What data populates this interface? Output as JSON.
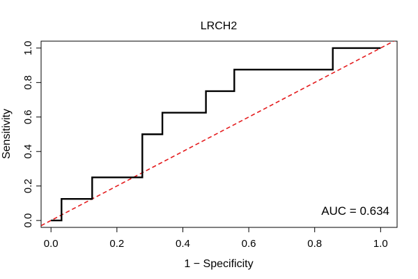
{
  "chart_data": {
    "type": "line",
    "title": "LRCH2",
    "xlabel": "1 − Specificity",
    "ylabel": "Sensitivity",
    "xlim": [
      -0.03,
      1.05
    ],
    "ylim": [
      -0.04,
      1.04
    ],
    "xticks": [
      0.0,
      0.2,
      0.4,
      0.6,
      0.8,
      1.0
    ],
    "xtick_labels": [
      "0.0",
      "0.2",
      "0.4",
      "0.6",
      "0.8",
      "1.0"
    ],
    "yticks": [
      0.0,
      0.2,
      0.4,
      0.6,
      0.8,
      1.0
    ],
    "ytick_labels": [
      "0.0",
      "0.2",
      "0.4",
      "0.6",
      "0.8",
      "1.0"
    ],
    "grid": false,
    "annotation": "AUC = 0.634",
    "series": [
      {
        "role": "roc-curve",
        "color": "#000000",
        "style": "solid",
        "points": [
          [
            0.0,
            0.0
          ],
          [
            0.032,
            0.0
          ],
          [
            0.032,
            0.125
          ],
          [
            0.125,
            0.125
          ],
          [
            0.125,
            0.25
          ],
          [
            0.277,
            0.25
          ],
          [
            0.277,
            0.5
          ],
          [
            0.338,
            0.5
          ],
          [
            0.338,
            0.625
          ],
          [
            0.47,
            0.625
          ],
          [
            0.47,
            0.75
          ],
          [
            0.556,
            0.75
          ],
          [
            0.556,
            0.875
          ],
          [
            0.855,
            0.875
          ],
          [
            0.855,
            1.0
          ],
          [
            1.0,
            1.0
          ]
        ]
      },
      {
        "role": "reference-diagonal",
        "color": "#e41a1c",
        "style": "dashed",
        "points": [
          [
            -0.03,
            -0.03
          ],
          [
            1.05,
            1.05
          ]
        ]
      }
    ]
  }
}
